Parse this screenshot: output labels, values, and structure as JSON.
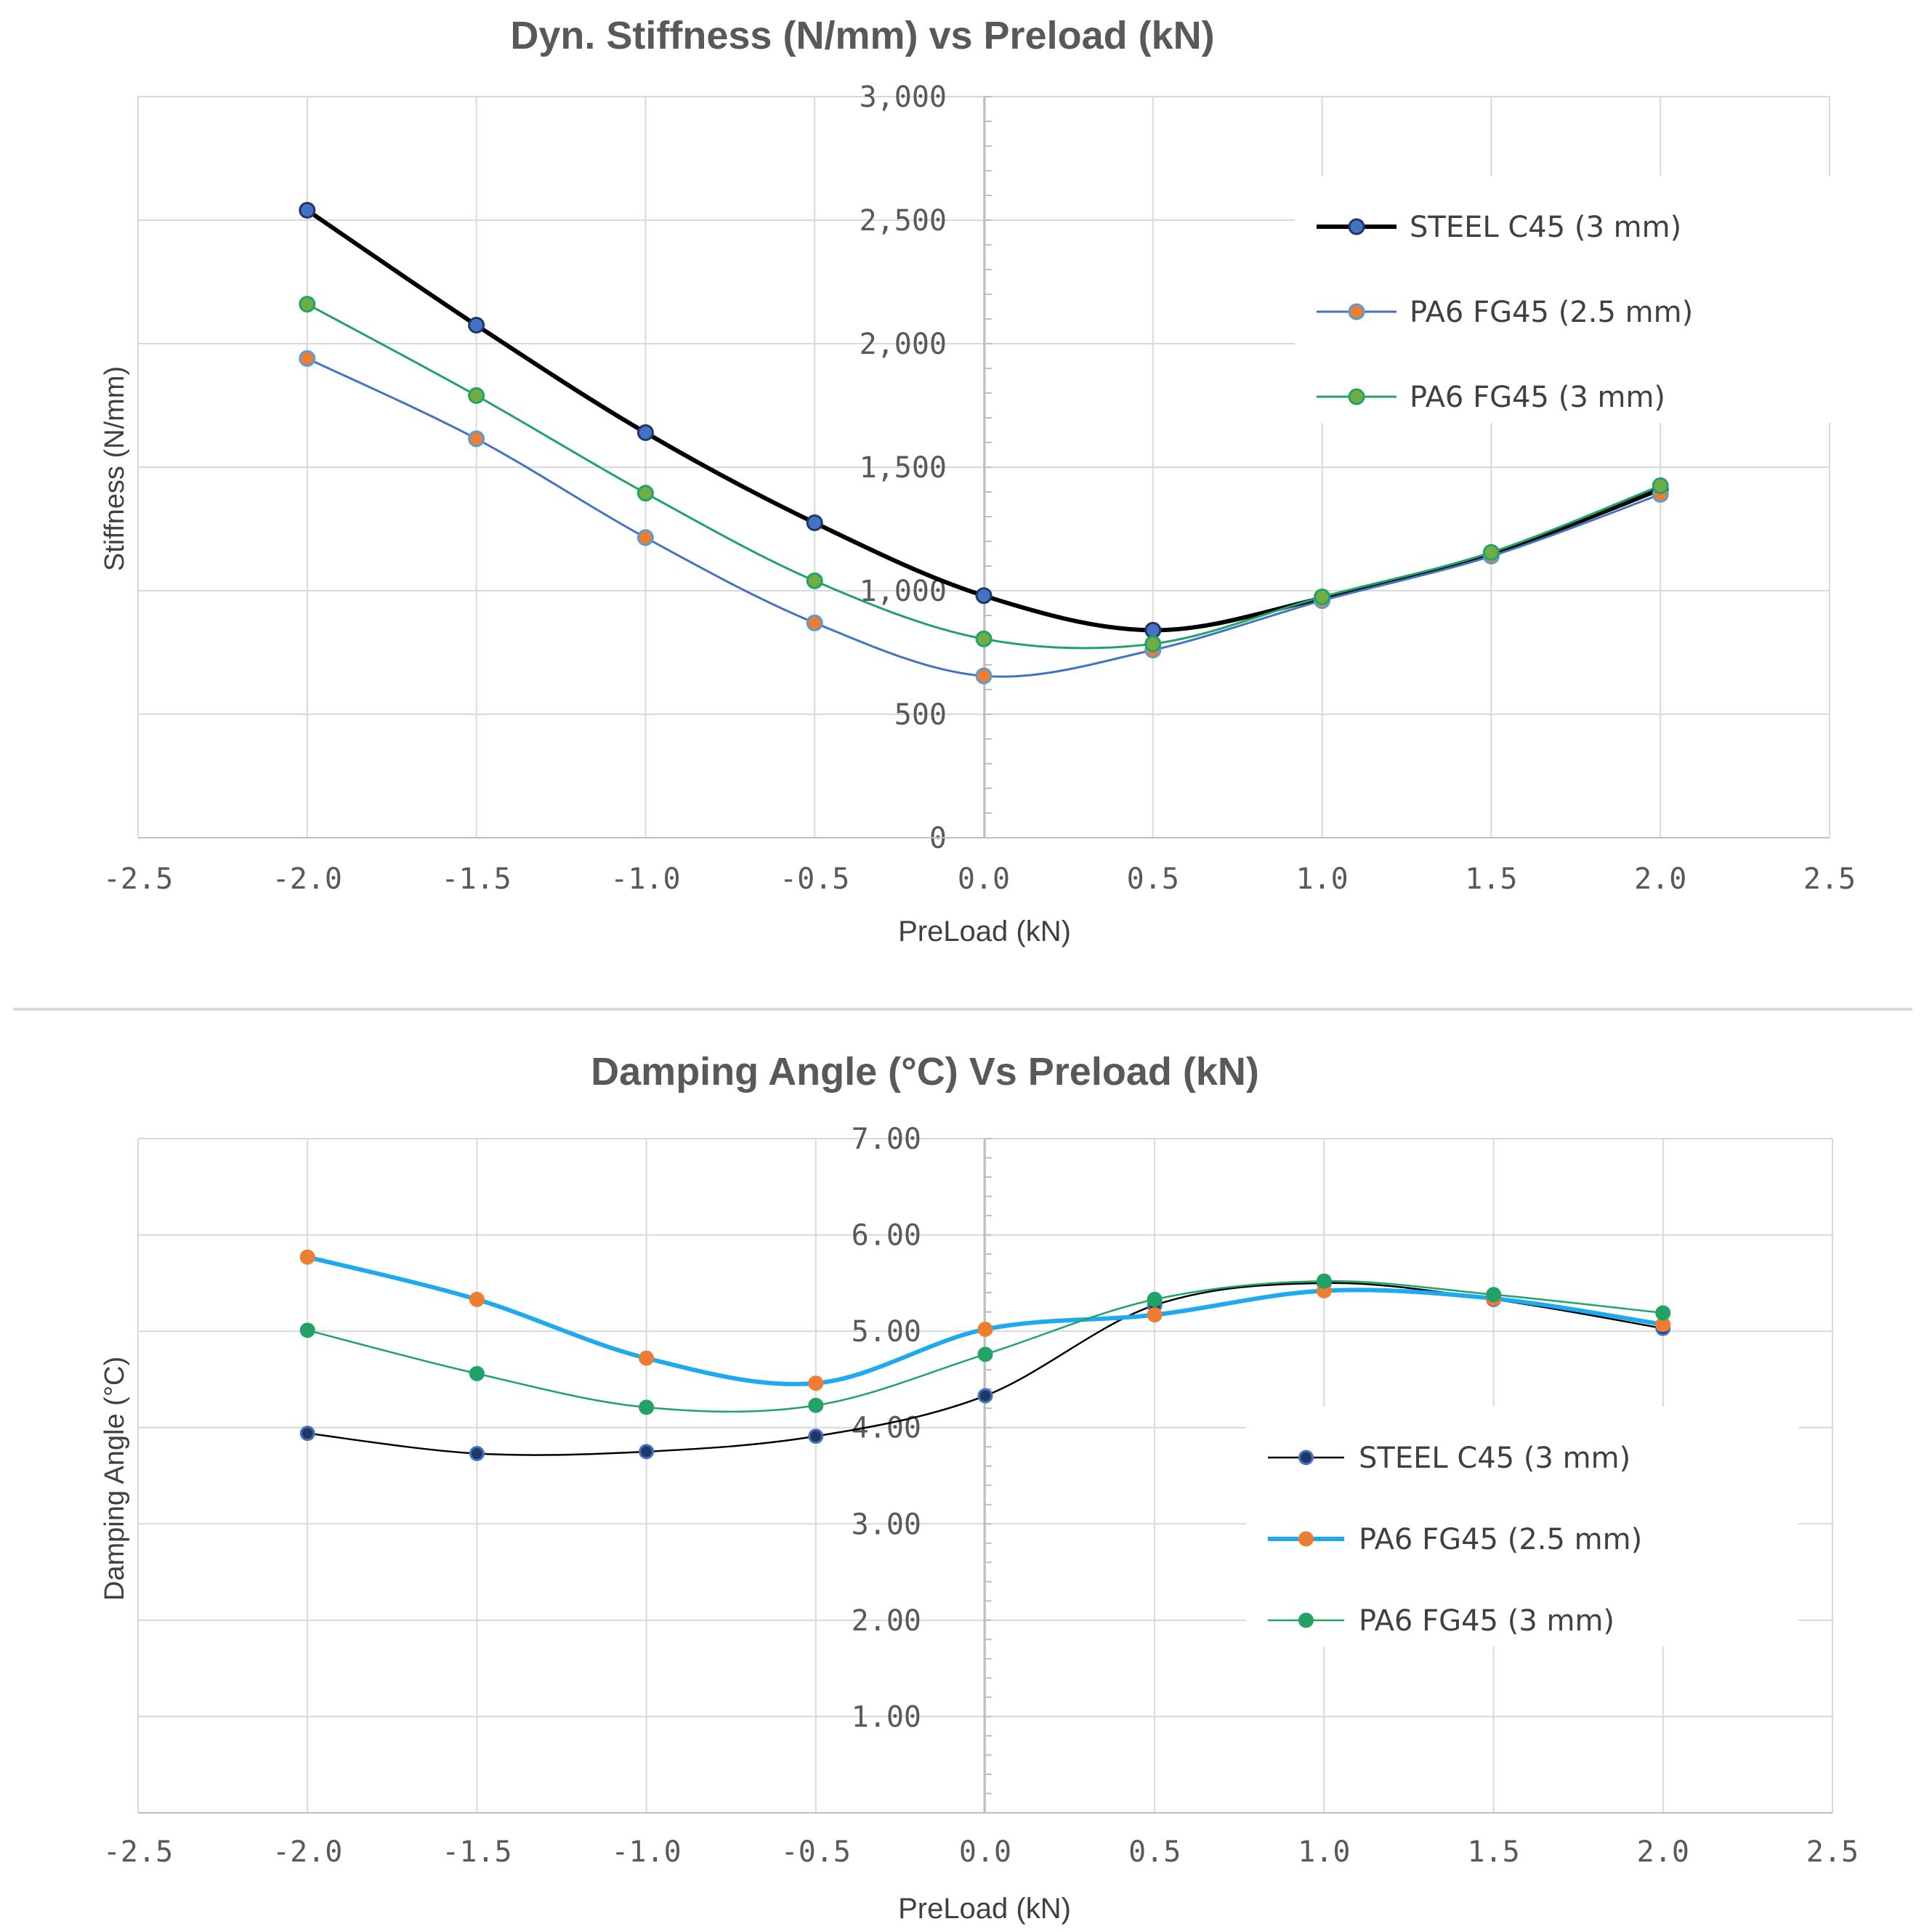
{
  "chart_data": [
    {
      "type": "line",
      "title": "Dyn. Stiffness (N/mm) vs Preload (kN)",
      "xlabel": "PreLoad (kN)",
      "ylabel": "Stiffness (N/mm)",
      "xlim": [
        -2.5,
        2.5
      ],
      "ylim": [
        0,
        3000
      ],
      "xticks": [
        -2.5,
        -2.0,
        -1.5,
        -1.0,
        -0.5,
        0.0,
        0.5,
        1.0,
        1.5,
        2.0,
        2.5
      ],
      "xtick_labels": [
        "-2.5",
        "-2.0",
        "-1.5",
        "-1.0",
        "-0.5",
        "0.0",
        "0.5",
        "1.0",
        "1.5",
        "2.0",
        "2.5"
      ],
      "yticks": [
        0,
        500,
        1000,
        1500,
        2000,
        2500,
        3000
      ],
      "ytick_labels": [
        "0",
        "500",
        "1,000",
        "1,500",
        "2,000",
        "2,500",
        "3,000"
      ],
      "grid": true,
      "legend_position": "top-right",
      "x": [
        -2.0,
        -1.5,
        -1.0,
        -0.5,
        0.0,
        0.5,
        1.0,
        1.5,
        2.0
      ],
      "series": [
        {
          "name": "STEEL C45 (3 mm)",
          "values": [
            2540,
            2075,
            1640,
            1275,
            980,
            840,
            970,
            1150,
            1410
          ],
          "line_color": "#000000",
          "marker_fill": "#4472c4",
          "marker_edge": "#1f3864",
          "line_style": "thick"
        },
        {
          "name": "PA6 FG45 (2.5 mm)",
          "values": [
            1940,
            1615,
            1215,
            870,
            655,
            760,
            960,
            1140,
            1390
          ],
          "line_color": "#4472c4",
          "marker_fill": "#ed7d31",
          "marker_edge": "#5b9bd5",
          "line_style": "thin"
        },
        {
          "name": "PA6 FG45 (3 mm)",
          "values": [
            2160,
            1790,
            1395,
            1040,
            805,
            785,
            975,
            1155,
            1425
          ],
          "line_color": "#21a366",
          "marker_fill": "#70ad47",
          "marker_edge": "#21a366",
          "line_style": "thin"
        }
      ]
    },
    {
      "type": "line",
      "title": "Damping Angle (°C) Vs Preload (kN)",
      "xlabel": "PreLoad (kN)",
      "ylabel": "Damping Angle (°C)",
      "xlim": [
        -2.5,
        2.5
      ],
      "ylim": [
        0,
        7
      ],
      "xticks": [
        -2.5,
        -2.0,
        -1.5,
        -1.0,
        -0.5,
        0.0,
        0.5,
        1.0,
        1.5,
        2.0,
        2.5
      ],
      "xtick_labels": [
        "-2.5",
        "-2.0",
        "-1.5",
        "-1.0",
        "-0.5",
        "0.0",
        "0.5",
        "1.0",
        "1.5",
        "2.0",
        "2.5"
      ],
      "yticks": [
        1,
        2,
        3,
        4,
        5,
        6,
        7
      ],
      "ytick_labels": [
        "1.00",
        "2.00",
        "3.00",
        "4.00",
        "5.00",
        "6.00",
        "7.00"
      ],
      "grid": true,
      "legend_position": "center-right",
      "x": [
        -2.0,
        -1.5,
        -1.0,
        -0.5,
        0.0,
        0.5,
        1.0,
        1.5,
        2.0
      ],
      "series": [
        {
          "name": "STEEL C45 (3 mm)",
          "values": [
            3.94,
            3.73,
            3.75,
            3.91,
            4.33,
            5.27,
            5.5,
            5.33,
            5.03
          ],
          "line_color": "#000000",
          "marker_fill": "#1f3864",
          "marker_edge": "#4472c4",
          "line_style": "thin"
        },
        {
          "name": "PA6 FG45 (2.5 mm)",
          "values": [
            5.77,
            5.33,
            4.72,
            4.46,
            5.02,
            5.17,
            5.42,
            5.34,
            5.07
          ],
          "line_color": "#1eaaf1",
          "marker_fill": "#ed7d31",
          "marker_edge": "#ed7d31",
          "line_style": "thick"
        },
        {
          "name": "PA6 FG45 (3 mm)",
          "values": [
            5.01,
            4.56,
            4.21,
            4.23,
            4.76,
            5.33,
            5.52,
            5.38,
            5.19
          ],
          "line_color": "#21a366",
          "marker_fill": "#21a366",
          "marker_edge": "#21a366",
          "line_style": "thin"
        }
      ]
    }
  ]
}
